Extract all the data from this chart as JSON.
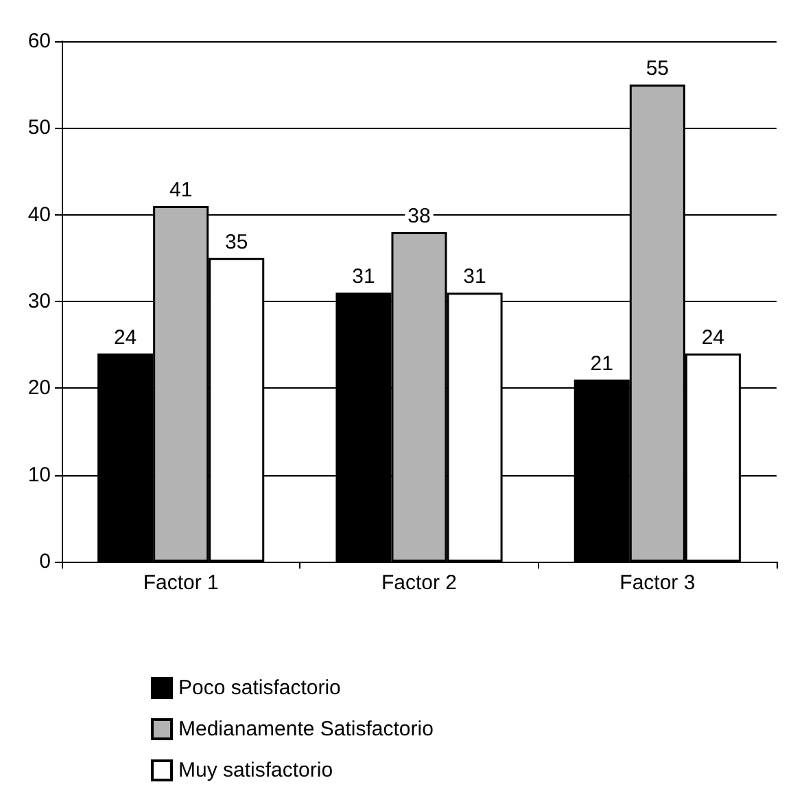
{
  "chart_data": {
    "type": "bar",
    "categories": [
      "Factor 1",
      "Factor 2",
      "Factor 3"
    ],
    "series": [
      {
        "name": "Poco satisfactorio",
        "color": "#000000",
        "values": [
          24,
          31,
          21
        ]
      },
      {
        "name": "Medianamente Satisfactorio",
        "color": "#b3b3b3",
        "values": [
          41,
          38,
          55
        ]
      },
      {
        "name": "Muy satisfactorio",
        "color": "#ffffff",
        "values": [
          35,
          31,
          24
        ]
      }
    ],
    "ylim": [
      0,
      60
    ],
    "yticks": [
      0,
      10,
      20,
      30,
      40,
      50,
      60
    ],
    "grid": "y",
    "legend": "bottom",
    "data_labels": true
  }
}
